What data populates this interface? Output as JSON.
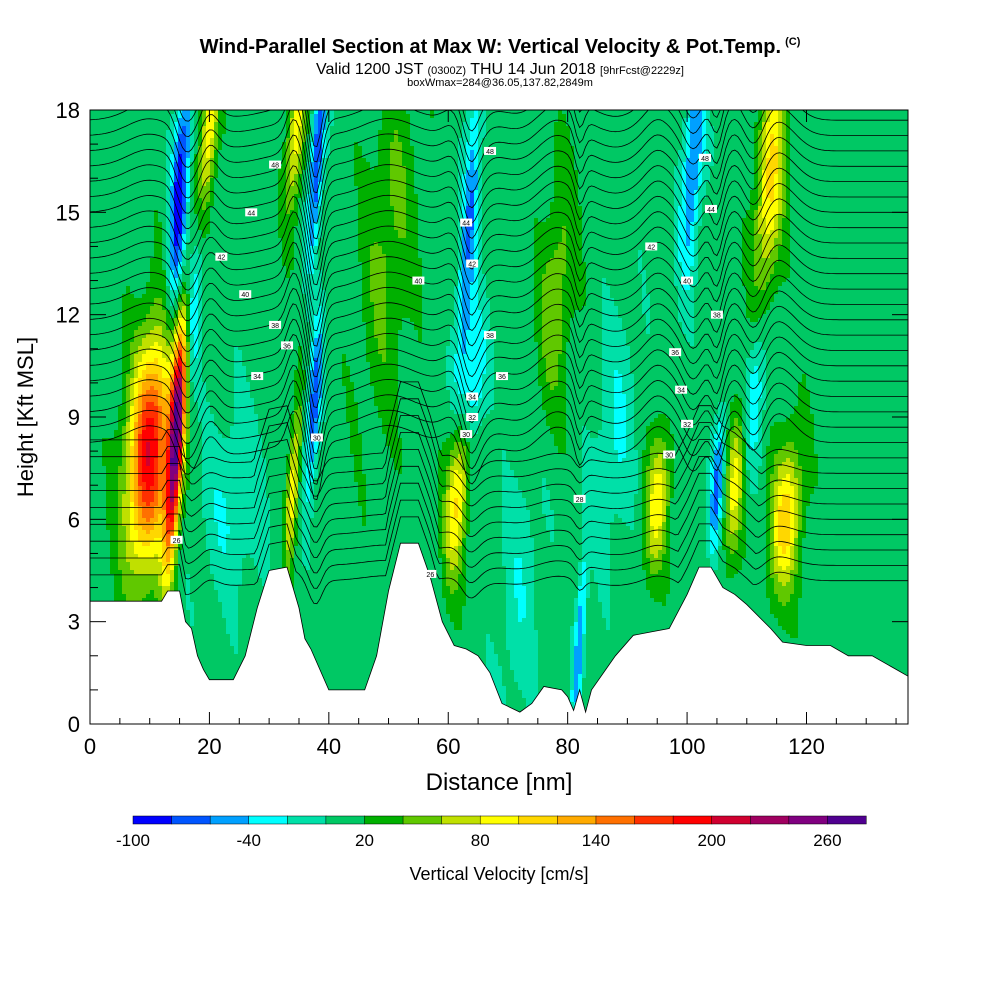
{
  "chart_data": {
    "type": "heatmap",
    "title": "Wind-Parallel Section at Max W: Vertical Velocity & Pot.Temp.",
    "title_suffix": "(C)",
    "subtitle": {
      "valid": "Valid 1200 JST",
      "utc": "(0300Z)",
      "date": "THU 14 Jun 2018",
      "forecast": "[9hrFcst@2229z]"
    },
    "subtitle2": "boxWmax=284@36.05,137.82,2849m",
    "xlabel": "Distance [nm]",
    "ylabel": "Height [Kft MSL]",
    "xlim": [
      0,
      137
    ],
    "ylim": [
      0,
      18
    ],
    "x_ticks": [
      0,
      20,
      40,
      60,
      80,
      100,
      120
    ],
    "y_ticks": [
      0,
      3,
      6,
      9,
      12,
      15,
      18
    ],
    "colorbar": {
      "label": "Vertical Velocity [cm/s]",
      "tick_labels": [
        "-100",
        "-40",
        "20",
        "80",
        "140",
        "200",
        "260"
      ],
      "tick_values": [
        -100,
        -40,
        20,
        80,
        140,
        200,
        260
      ],
      "min": -100,
      "max": 280,
      "bin": 20,
      "colors": [
        "#0000ff",
        "#0055ff",
        "#00a0ff",
        "#00ffff",
        "#00e0a8",
        "#00c864",
        "#00b000",
        "#60c800",
        "#c0e000",
        "#ffff00",
        "#ffd700",
        "#ffaa00",
        "#ff7000",
        "#ff3000",
        "#ff0000",
        "#d00030",
        "#a00060",
        "#800080",
        "#500090"
      ]
    },
    "background_velocity": 10,
    "updrafts": [
      {
        "x": 10,
        "h": 8.0,
        "amp": 185,
        "wx": 2.6,
        "wz": 2.4
      },
      {
        "x": 14.5,
        "h": 8.5,
        "amp": 240,
        "wx": 0.9,
        "wz": 2.6
      },
      {
        "x": 20,
        "h": 17.5,
        "amp": 90,
        "wx": 1.0,
        "wz": 1.8
      },
      {
        "x": 34.5,
        "h": 17.3,
        "amp": 85,
        "wx": 1.0,
        "wz": 1.6
      },
      {
        "x": 34,
        "h": 7.0,
        "amp": 90,
        "wx": 0.7,
        "wz": 1.6
      },
      {
        "x": 61.5,
        "h": 6.8,
        "amp": 100,
        "wx": 1.3,
        "wz": 1.8
      },
      {
        "x": 95,
        "h": 6.5,
        "amp": 80,
        "wx": 1.4,
        "wz": 1.5
      },
      {
        "x": 108,
        "h": 7.0,
        "amp": 75,
        "wx": 1.0,
        "wz": 1.6
      },
      {
        "x": 116.5,
        "h": 6.0,
        "amp": 100,
        "wx": 1.8,
        "wz": 1.6
      },
      {
        "x": 114,
        "h": 16.0,
        "amp": 95,
        "wx": 1.6,
        "wz": 2.5
      },
      {
        "x": 78,
        "h": 12.5,
        "amp": 45,
        "wx": 2.0,
        "wz": 2.5
      },
      {
        "x": 50,
        "h": 14.0,
        "amp": 35,
        "wx": 3.0,
        "wz": 3.5
      }
    ],
    "downdrafts": [
      {
        "x": 15,
        "h": 15.5,
        "amp": -110,
        "wx": 1.0,
        "wz": 2.5
      },
      {
        "x": 17,
        "h": 12.0,
        "amp": -60,
        "wx": 1.2,
        "wz": 1.8
      },
      {
        "x": 38,
        "h": 16.5,
        "amp": -95,
        "wx": 0.8,
        "wz": 2.0
      },
      {
        "x": 37.5,
        "h": 9.3,
        "amp": -90,
        "wx": 0.8,
        "wz": 1.8
      },
      {
        "x": 63.5,
        "h": 14.5,
        "amp": -70,
        "wx": 1.0,
        "wz": 3.5
      },
      {
        "x": 64,
        "h": 10.0,
        "amp": -60,
        "wx": 1.5,
        "wz": 1.5
      },
      {
        "x": 82,
        "h": 2.5,
        "amp": -70,
        "wx": 0.6,
        "wz": 1.8
      },
      {
        "x": 101,
        "h": 16.5,
        "amp": -75,
        "wx": 1.2,
        "wz": 2.5
      },
      {
        "x": 105,
        "h": 7.0,
        "amp": -75,
        "wx": 0.7,
        "wz": 1.5
      },
      {
        "x": 111.5,
        "h": 9.8,
        "amp": -50,
        "wx": 1.2,
        "wz": 1.5
      },
      {
        "x": 72,
        "h": 4.0,
        "amp": -25,
        "wx": 2.5,
        "wz": 3.0
      },
      {
        "x": 24,
        "h": 6.5,
        "amp": -30,
        "wx": 4.0,
        "wz": 2.0
      },
      {
        "x": 88,
        "h": 8.5,
        "amp": -30,
        "wx": 2.5,
        "wz": 2.5
      }
    ],
    "terrain": [
      [
        0,
        3.6
      ],
      [
        12,
        3.6
      ],
      [
        13,
        3.9
      ],
      [
        15,
        3.9
      ],
      [
        16,
        3.0
      ],
      [
        17,
        2.8
      ],
      [
        18,
        2.0
      ],
      [
        19,
        1.6
      ],
      [
        20,
        1.3
      ],
      [
        24,
        1.3
      ],
      [
        26,
        2.0
      ],
      [
        28,
        3.4
      ],
      [
        30,
        4.5
      ],
      [
        33,
        4.6
      ],
      [
        35,
        3.4
      ],
      [
        36,
        2.5
      ],
      [
        37,
        2.2
      ],
      [
        40,
        1.0
      ],
      [
        46,
        1.0
      ],
      [
        48,
        2.0
      ],
      [
        50,
        3.9
      ],
      [
        52,
        5.3
      ],
      [
        55,
        5.3
      ],
      [
        57,
        4.3
      ],
      [
        59,
        3.0
      ],
      [
        61,
        2.3
      ],
      [
        63,
        2.2
      ],
      [
        65,
        2.0
      ],
      [
        67,
        1.5
      ],
      [
        69,
        0.6
      ],
      [
        72,
        0.35
      ],
      [
        74,
        0.6
      ],
      [
        76,
        1.1
      ],
      [
        79,
        1.0
      ],
      [
        80,
        0.8
      ],
      [
        81,
        0.4
      ],
      [
        82,
        1.0
      ],
      [
        83,
        0.35
      ],
      [
        84,
        1.0
      ],
      [
        88,
        2.0
      ],
      [
        91,
        2.6
      ],
      [
        94,
        2.7
      ],
      [
        97,
        2.8
      ],
      [
        100,
        3.8
      ],
      [
        102,
        4.6
      ],
      [
        104,
        4.6
      ],
      [
        106,
        4.0
      ],
      [
        108,
        3.8
      ],
      [
        110,
        3.5
      ],
      [
        114,
        2.8
      ],
      [
        116,
        2.4
      ],
      [
        120,
        2.3
      ],
      [
        124,
        2.3
      ],
      [
        127,
        2.0
      ],
      [
        131,
        2.0
      ],
      [
        135,
        1.6
      ],
      [
        137,
        1.4
      ]
    ],
    "isentrope_spacing": 0.45,
    "contour_labels": [
      {
        "x": 31,
        "h": 16.4,
        "text": "48"
      },
      {
        "x": 27,
        "h": 15.0,
        "text": "44"
      },
      {
        "x": 22,
        "h": 13.7,
        "text": "42"
      },
      {
        "x": 26,
        "h": 12.6,
        "text": "40"
      },
      {
        "x": 31,
        "h": 11.7,
        "text": "38"
      },
      {
        "x": 33,
        "h": 11.1,
        "text": "36"
      },
      {
        "x": 28,
        "h": 10.2,
        "text": "34"
      },
      {
        "x": 38,
        "h": 8.4,
        "text": "30"
      },
      {
        "x": 14.5,
        "h": 5.4,
        "text": "26"
      },
      {
        "x": 67,
        "h": 16.8,
        "text": "48"
      },
      {
        "x": 63,
        "h": 14.7,
        "text": "44"
      },
      {
        "x": 64,
        "h": 13.5,
        "text": "42"
      },
      {
        "x": 55,
        "h": 13.0,
        "text": "40"
      },
      {
        "x": 67,
        "h": 11.4,
        "text": "38"
      },
      {
        "x": 69,
        "h": 10.2,
        "text": "36"
      },
      {
        "x": 64,
        "h": 9.6,
        "text": "34"
      },
      {
        "x": 64,
        "h": 9.0,
        "text": "32"
      },
      {
        "x": 63,
        "h": 8.5,
        "text": "30"
      },
      {
        "x": 57,
        "h": 4.4,
        "text": "26"
      },
      {
        "x": 82,
        "h": 6.6,
        "text": "28"
      },
      {
        "x": 103,
        "h": 16.6,
        "text": "48"
      },
      {
        "x": 104,
        "h": 15.1,
        "text": "44"
      },
      {
        "x": 94,
        "h": 14.0,
        "text": "42"
      },
      {
        "x": 100,
        "h": 13.0,
        "text": "40"
      },
      {
        "x": 105,
        "h": 12.0,
        "text": "38"
      },
      {
        "x": 98,
        "h": 10.9,
        "text": "36"
      },
      {
        "x": 99,
        "h": 9.8,
        "text": "34"
      },
      {
        "x": 100,
        "h": 8.8,
        "text": "32"
      },
      {
        "x": 97,
        "h": 7.9,
        "text": "30"
      }
    ]
  }
}
